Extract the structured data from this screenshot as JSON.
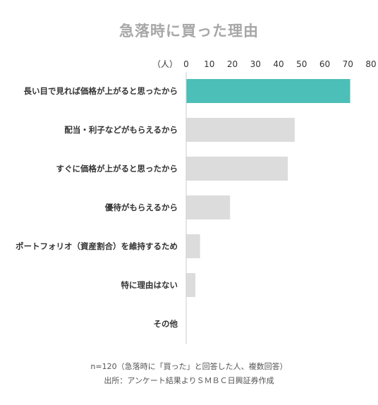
{
  "chart_data": {
    "type": "bar",
    "orientation": "horizontal",
    "title": "急落時に買った理由",
    "unit_label": "（人）",
    "xlim": [
      0,
      80
    ],
    "xticks": [
      0,
      10,
      20,
      30,
      40,
      50,
      60,
      70,
      80
    ],
    "categories": [
      "長い目で見れば価格が上がると思ったから",
      "配当・利子などがもらえるから",
      "すぐに価格が上がると思ったから",
      "優待がもらえるから",
      "ポートフォリオ（資産割合）を維持するため",
      "特に理由はない",
      "その他"
    ],
    "values": [
      71,
      47,
      44,
      19,
      6,
      4,
      0
    ],
    "colors": {
      "highlight": "#4bbfb8",
      "bar": "#dcdcdc",
      "axis": "#cccccc",
      "title": "#a7a7a7",
      "text": "#333333"
    },
    "grid": false
  },
  "notes": {
    "sample": "n=120（急落時に「買った」と回答した人、複数回答）",
    "source": "出所：アンケート結果よりＳＭＢＣ日興証券作成"
  }
}
